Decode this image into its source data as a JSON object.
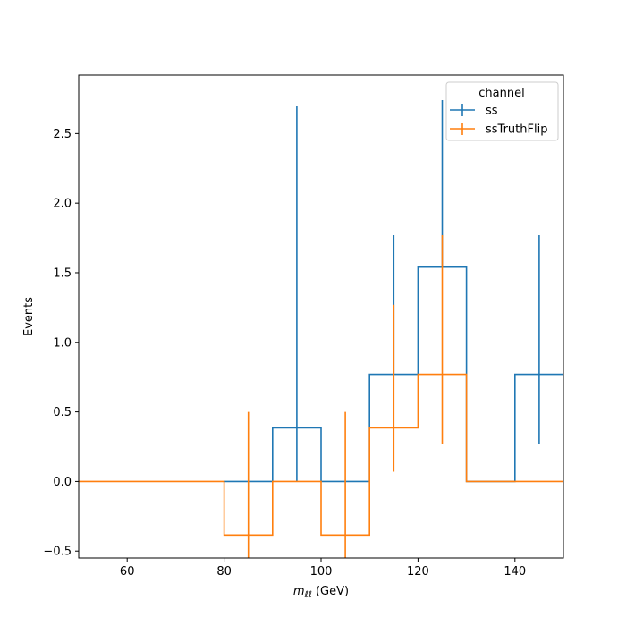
{
  "chart_data": {
    "type": "line",
    "style": "step-histogram-with-errorbars",
    "xlabel_main": "m",
    "xlabel_sub": "ℓℓ",
    "xlabel_unit": " (GeV)",
    "ylabel": "Events",
    "xlim": [
      50,
      150
    ],
    "ylim": [
      -0.55,
      2.92
    ],
    "xticks": [
      60,
      80,
      100,
      120,
      140
    ],
    "xtick_labels": [
      "60",
      "80",
      "100",
      "120",
      "140"
    ],
    "yticks": [
      -0.5,
      0.0,
      0.5,
      1.0,
      1.5,
      2.0,
      2.5
    ],
    "ytick_labels": [
      "−0.5",
      "0.0",
      "0.5",
      "1.0",
      "1.5",
      "2.0",
      "2.5"
    ],
    "grid": false,
    "legend": {
      "title": "channel",
      "placement": "top-right",
      "entries": [
        "ss",
        "ssTruthFlip"
      ]
    },
    "series": [
      {
        "name": "ss",
        "color": "#1f77b4",
        "bin_edges": [
          80,
          90,
          100,
          110,
          120,
          130,
          140,
          150
        ],
        "values": [
          0.0,
          0.385,
          0.0,
          0.77,
          1.54,
          0.0,
          0.77
        ],
        "errorbars": [
          {
            "x": 95,
            "low": 0.0,
            "high": 2.7
          },
          {
            "x": 115,
            "low": 0.77,
            "high": 1.77
          },
          {
            "x": 125,
            "low": 1.54,
            "high": 2.74
          },
          {
            "x": 145,
            "low": 0.27,
            "high": 1.77
          }
        ]
      },
      {
        "name": "ssTruthFlip",
        "color": "#ff7f0e",
        "bin_edges": [
          50,
          60,
          70,
          80,
          90,
          100,
          110,
          120,
          130,
          140,
          150
        ],
        "values": [
          0.0,
          0.0,
          0.0,
          -0.385,
          0.0,
          -0.385,
          0.385,
          0.77,
          0.0,
          0.0
        ],
        "errorbars": [
          {
            "x": 85,
            "low": -0.6,
            "high": 0.5
          },
          {
            "x": 105,
            "low": -0.6,
            "high": 0.5
          },
          {
            "x": 115,
            "low": 0.07,
            "high": 1.27
          },
          {
            "x": 125,
            "low": 0.27,
            "high": 1.77
          }
        ]
      }
    ]
  }
}
